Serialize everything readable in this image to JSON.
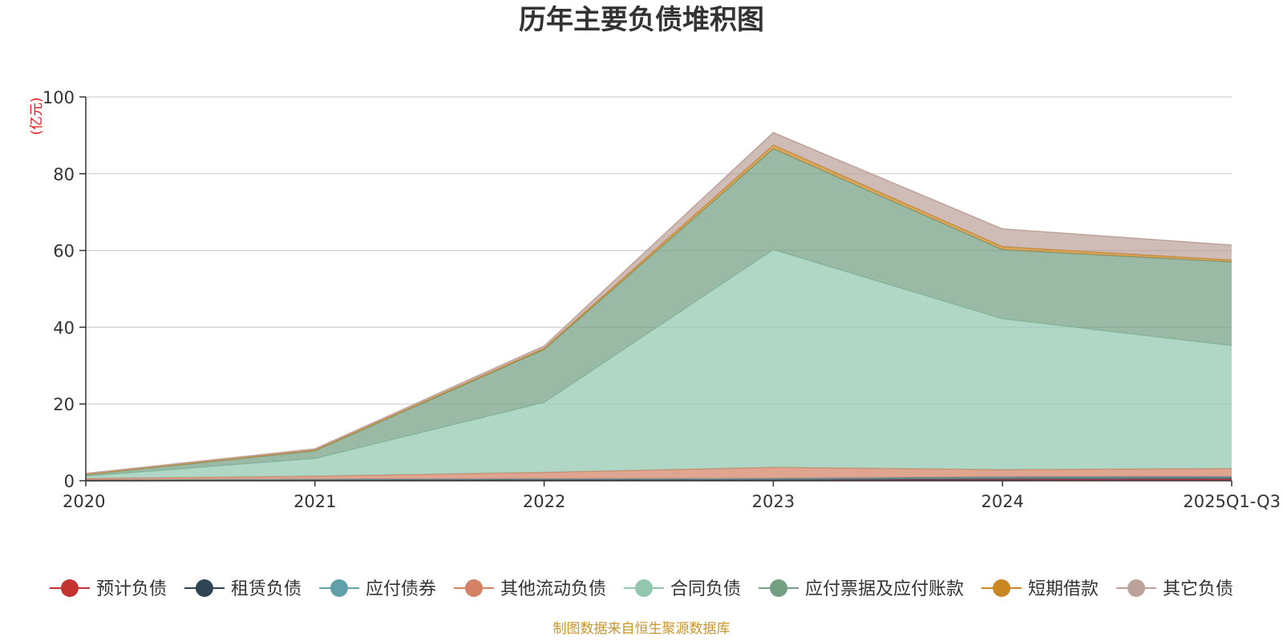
{
  "chart_data": {
    "type": "area",
    "stacked": true,
    "title": "历年主要负债堆积图",
    "unit_label": "(亿元)",
    "x": [
      "2020",
      "2021",
      "2022",
      "2023",
      "2024",
      "2025Q1-Q3"
    ],
    "ylim": [
      0,
      100
    ],
    "yticks": [
      "0",
      "20",
      "40",
      "60",
      "80",
      "100"
    ],
    "grid": true,
    "legend_position": "bottom",
    "series": [
      {
        "name": "预计负债",
        "color": "#c23531",
        "values": [
          0.0,
          0.1,
          0.1,
          0.1,
          0.3,
          0.4
        ]
      },
      {
        "name": "租赁负债",
        "color": "#2f4554",
        "values": [
          0.2,
          0.3,
          0.4,
          0.5,
          0.7,
          0.7
        ]
      },
      {
        "name": "应付债券",
        "color": "#61a0a8",
        "values": [
          0.0,
          0.0,
          0.0,
          0.0,
          0.0,
          0.0
        ]
      },
      {
        "name": "其他流动负债",
        "color": "#d48265",
        "values": [
          0.4,
          0.8,
          1.7,
          2.9,
          1.9,
          2.1
        ]
      },
      {
        "name": "合同负债",
        "color": "#91c7ae",
        "values": [
          0.6,
          4.6,
          18.2,
          56.7,
          39.3,
          32.0
        ]
      },
      {
        "name": "应付票据及应付账款",
        "color": "#749f83",
        "values": [
          0.4,
          2.0,
          13.8,
          26.3,
          18.0,
          21.8
        ]
      },
      {
        "name": "短期借款",
        "color": "#ca8622",
        "values": [
          0.1,
          0.2,
          0.3,
          1.0,
          0.8,
          0.5
        ]
      },
      {
        "name": "其它负债",
        "color": "#bda29a",
        "values": [
          0.2,
          0.3,
          0.6,
          3.2,
          4.6,
          3.9
        ]
      }
    ]
  },
  "source_note": "制图数据来自恒生聚源数据库"
}
